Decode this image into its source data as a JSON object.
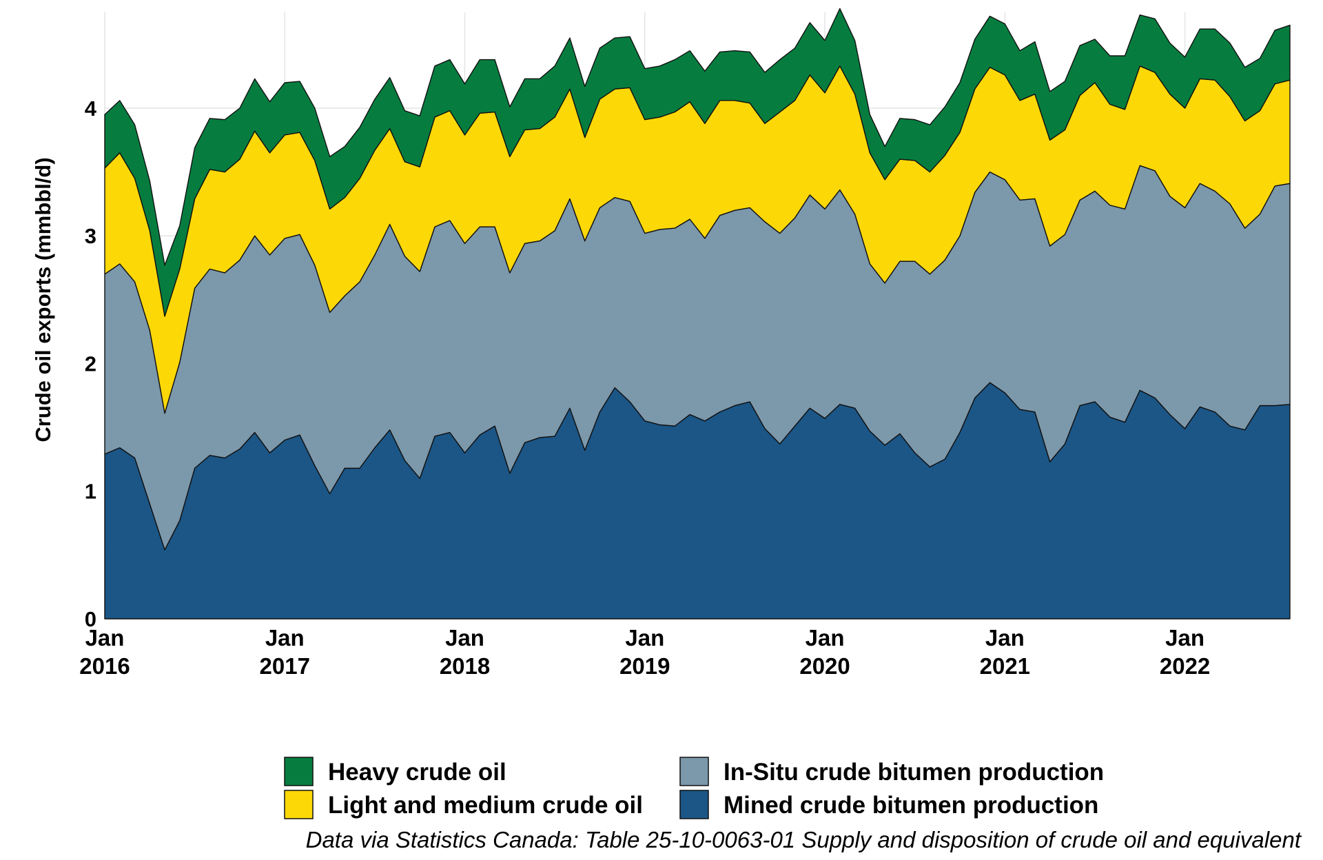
{
  "chart_data": {
    "type": "area",
    "stacked": true,
    "ylabel": "Crude oil exports (mmbbl/d)",
    "xlabel": "",
    "ylim": [
      0,
      4.75
    ],
    "yticks": [
      0,
      1,
      2,
      3,
      4
    ],
    "xlim": [
      "2016-01",
      "2022-08"
    ],
    "x_tick_labels": [
      {
        "month": "Jan",
        "year": "2016"
      },
      {
        "month": "Jan",
        "year": "2017"
      },
      {
        "month": "Jan",
        "year": "2018"
      },
      {
        "month": "Jan",
        "year": "2019"
      },
      {
        "month": "Jan",
        "year": "2020"
      },
      {
        "month": "Jan",
        "year": "2021"
      },
      {
        "month": "Jan",
        "year": "2022"
      }
    ],
    "grid": true,
    "legend_position": "bottom",
    "caption": "Data via Statistics Canada: Table 25-10-0063-01  Supply and disposition of crude oil and equivalent",
    "x": [
      "2016-01",
      "2016-02",
      "2016-03",
      "2016-04",
      "2016-05",
      "2016-06",
      "2016-07",
      "2016-08",
      "2016-09",
      "2016-10",
      "2016-11",
      "2016-12",
      "2017-01",
      "2017-02",
      "2017-03",
      "2017-04",
      "2017-05",
      "2017-06",
      "2017-07",
      "2017-08",
      "2017-09",
      "2017-10",
      "2017-11",
      "2017-12",
      "2018-01",
      "2018-02",
      "2018-03",
      "2018-04",
      "2018-05",
      "2018-06",
      "2018-07",
      "2018-08",
      "2018-09",
      "2018-10",
      "2018-11",
      "2018-12",
      "2019-01",
      "2019-02",
      "2019-03",
      "2019-04",
      "2019-05",
      "2019-06",
      "2019-07",
      "2019-08",
      "2019-09",
      "2019-10",
      "2019-11",
      "2019-12",
      "2020-01",
      "2020-02",
      "2020-03",
      "2020-04",
      "2020-05",
      "2020-06",
      "2020-07",
      "2020-08",
      "2020-09",
      "2020-10",
      "2020-11",
      "2020-12",
      "2021-01",
      "2021-02",
      "2021-03",
      "2021-04",
      "2021-05",
      "2021-06",
      "2021-07",
      "2021-08",
      "2021-09",
      "2021-10",
      "2021-11",
      "2021-12",
      "2022-01",
      "2022-02",
      "2022-03",
      "2022-04",
      "2022-05",
      "2022-06",
      "2022-07",
      "2022-08"
    ],
    "series": [
      {
        "name": "Mined crude bitumen production",
        "color": "#1b5686",
        "values": [
          1.29,
          1.34,
          1.26,
          0.9,
          0.54,
          0.77,
          1.18,
          1.28,
          1.26,
          1.33,
          1.46,
          1.3,
          1.4,
          1.44,
          1.2,
          0.98,
          1.18,
          1.18,
          1.34,
          1.48,
          1.24,
          1.1,
          1.43,
          1.46,
          1.3,
          1.44,
          1.51,
          1.14,
          1.38,
          1.42,
          1.43,
          1.65,
          1.32,
          1.62,
          1.81,
          1.7,
          1.55,
          1.52,
          1.51,
          1.6,
          1.55,
          1.62,
          1.67,
          1.7,
          1.49,
          1.37,
          1.51,
          1.65,
          1.57,
          1.68,
          1.65,
          1.47,
          1.36,
          1.45,
          1.3,
          1.19,
          1.25,
          1.46,
          1.73,
          1.85,
          1.77,
          1.64,
          1.62,
          1.23,
          1.37,
          1.67,
          1.7,
          1.58,
          1.54,
          1.79,
          1.73,
          1.6,
          1.49,
          1.66,
          1.62,
          1.51,
          1.48,
          1.67,
          1.67,
          1.68
        ]
      },
      {
        "name": "In-Situ crude bitumen production",
        "color": "#7c98ab",
        "values": [
          1.41,
          1.44,
          1.38,
          1.36,
          1.07,
          1.24,
          1.41,
          1.46,
          1.45,
          1.48,
          1.54,
          1.55,
          1.58,
          1.57,
          1.57,
          1.42,
          1.35,
          1.46,
          1.51,
          1.61,
          1.6,
          1.62,
          1.64,
          1.66,
          1.64,
          1.63,
          1.56,
          1.57,
          1.56,
          1.54,
          1.61,
          1.64,
          1.64,
          1.6,
          1.49,
          1.57,
          1.47,
          1.53,
          1.55,
          1.53,
          1.43,
          1.54,
          1.53,
          1.52,
          1.62,
          1.65,
          1.63,
          1.67,
          1.64,
          1.68,
          1.52,
          1.31,
          1.27,
          1.35,
          1.5,
          1.51,
          1.56,
          1.54,
          1.61,
          1.65,
          1.67,
          1.64,
          1.67,
          1.69,
          1.64,
          1.61,
          1.65,
          1.66,
          1.67,
          1.76,
          1.78,
          1.71,
          1.73,
          1.75,
          1.73,
          1.74,
          1.58,
          1.5,
          1.72,
          1.73
        ]
      },
      {
        "name": "Light and medium crude oil",
        "color": "#fdd807",
        "values": [
          0.83,
          0.87,
          0.81,
          0.78,
          0.76,
          0.73,
          0.7,
          0.78,
          0.79,
          0.79,
          0.82,
          0.8,
          0.81,
          0.8,
          0.82,
          0.81,
          0.77,
          0.81,
          0.82,
          0.75,
          0.74,
          0.82,
          0.86,
          0.86,
          0.85,
          0.89,
          0.9,
          0.91,
          0.89,
          0.88,
          0.89,
          0.86,
          0.81,
          0.85,
          0.85,
          0.89,
          0.89,
          0.88,
          0.91,
          0.92,
          0.9,
          0.9,
          0.86,
          0.82,
          0.77,
          0.95,
          0.92,
          0.94,
          0.91,
          0.97,
          0.94,
          0.87,
          0.81,
          0.8,
          0.79,
          0.8,
          0.82,
          0.81,
          0.81,
          0.82,
          0.82,
          0.78,
          0.82,
          0.83,
          0.82,
          0.82,
          0.85,
          0.79,
          0.78,
          0.78,
          0.77,
          0.8,
          0.78,
          0.82,
          0.87,
          0.84,
          0.84,
          0.81,
          0.8,
          0.81
        ]
      },
      {
        "name": "Heavy crude oil",
        "color": "#067d3f",
        "values": [
          0.42,
          0.41,
          0.42,
          0.39,
          0.4,
          0.34,
          0.4,
          0.4,
          0.41,
          0.4,
          0.41,
          0.4,
          0.41,
          0.4,
          0.41,
          0.41,
          0.4,
          0.4,
          0.4,
          0.4,
          0.4,
          0.4,
          0.4,
          0.4,
          0.4,
          0.42,
          0.41,
          0.39,
          0.4,
          0.39,
          0.4,
          0.4,
          0.4,
          0.4,
          0.4,
          0.4,
          0.4,
          0.4,
          0.41,
          0.4,
          0.41,
          0.38,
          0.39,
          0.4,
          0.4,
          0.41,
          0.41,
          0.41,
          0.41,
          0.45,
          0.42,
          0.3,
          0.26,
          0.32,
          0.32,
          0.37,
          0.38,
          0.39,
          0.39,
          0.4,
          0.4,
          0.39,
          0.41,
          0.38,
          0.38,
          0.39,
          0.34,
          0.38,
          0.42,
          0.4,
          0.42,
          0.4,
          0.4,
          0.39,
          0.4,
          0.42,
          0.42,
          0.41,
          0.42,
          0.43
        ]
      }
    ]
  }
}
